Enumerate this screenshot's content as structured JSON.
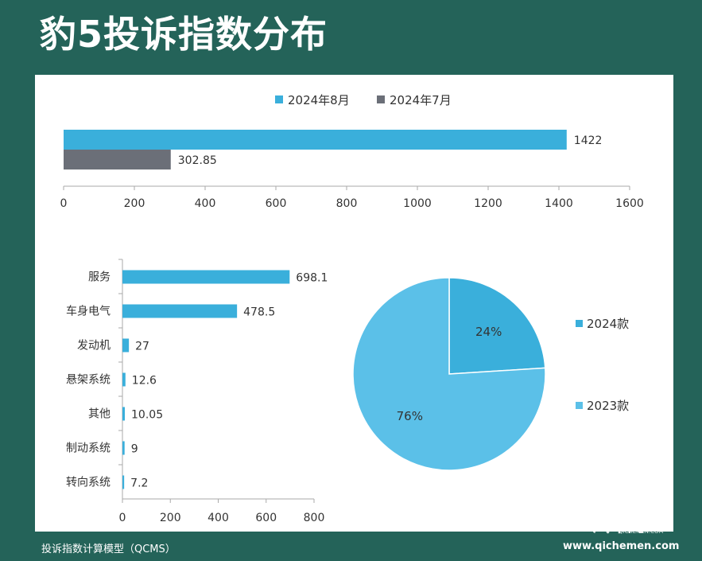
{
  "title": "豹5投诉指数分布",
  "footer": {
    "model": "投诉指数计算模型（QCMS）",
    "site": "www.qichemen.com",
    "logo_text": "汽车门",
    "logo_sub": "QICHEMEN.COM"
  },
  "colors": {
    "background": "#246359",
    "aug": "#3aafdb",
    "jul": "#6b6f78",
    "bar": "#3aafdb",
    "pie_2024": "#3aafdb",
    "pie_2023": "#5bc0e8"
  },
  "chart_data": [
    {
      "type": "bar",
      "orientation": "horizontal",
      "series": [
        {
          "name": "2024年8月",
          "values": [
            1422
          ]
        },
        {
          "name": "2024年7月",
          "values": [
            302.85
          ]
        }
      ],
      "value_labels": [
        "1422",
        "302.85"
      ],
      "xlim": [
        0,
        1600
      ],
      "xticks": [
        "0",
        "200",
        "400",
        "600",
        "800",
        "1000",
        "1200",
        "1400",
        "1600"
      ],
      "legend": "top"
    },
    {
      "type": "bar",
      "orientation": "horizontal",
      "categories": [
        "服务",
        "车身电气",
        "发动机",
        "悬架系统",
        "其他",
        "制动系统",
        "转向系统"
      ],
      "values": [
        698.1,
        478.5,
        27,
        12.6,
        10.05,
        9,
        7.2
      ],
      "value_labels": [
        "698.1",
        "478.5",
        "27",
        "12.6",
        "10.05",
        "9",
        "7.2"
      ],
      "xlim": [
        0,
        800
      ],
      "xticks": [
        "0",
        "200",
        "400",
        "600",
        "800"
      ]
    },
    {
      "type": "pie",
      "slices": [
        {
          "name": "2024款",
          "value": 24,
          "label": "24%"
        },
        {
          "name": "2023款",
          "value": 76,
          "label": "76%"
        }
      ],
      "legend": "right"
    }
  ]
}
